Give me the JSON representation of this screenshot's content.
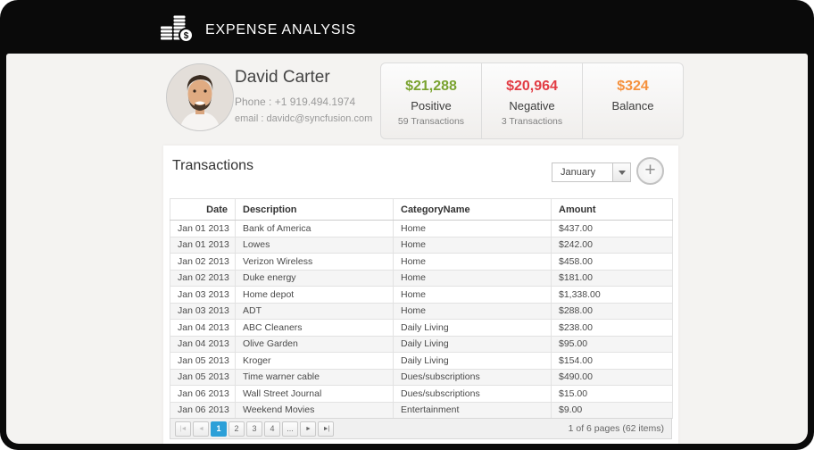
{
  "header": {
    "title": "EXPENSE ANALYSIS"
  },
  "profile": {
    "name": "David Carter",
    "phone": "Phone : +1 919.494.1974",
    "email": "email : davidc@syncfusion.com"
  },
  "summary": {
    "cards": [
      {
        "amount": "$21,288",
        "label": "Positive",
        "sub": "59 Transactions",
        "color": "#7aa330"
      },
      {
        "amount": "$20,964",
        "label": "Negative",
        "sub": "3 Transactions",
        "color": "#e23c44"
      },
      {
        "amount": "$324",
        "label": "Balance",
        "sub": "",
        "color": "#f5913d"
      }
    ]
  },
  "transactions": {
    "title": "Transactions",
    "month_filter": {
      "value": "January"
    },
    "add_button_label": "+",
    "table": {
      "columns": [
        "Date",
        "Description",
        "CategoryName",
        "Amount"
      ],
      "rows": [
        {
          "date": "Jan 01 2013",
          "description": "Bank of America",
          "category": "Home",
          "amount": "$437.00"
        },
        {
          "date": "Jan 01 2013",
          "description": "Lowes",
          "category": "Home",
          "amount": "$242.00"
        },
        {
          "date": "Jan 02 2013",
          "description": "Verizon Wireless",
          "category": "Home",
          "amount": "$458.00"
        },
        {
          "date": "Jan 02 2013",
          "description": "Duke energy",
          "category": "Home",
          "amount": "$181.00"
        },
        {
          "date": "Jan 03 2013",
          "description": "Home depot",
          "category": "Home",
          "amount": "$1,338.00"
        },
        {
          "date": "Jan 03 2013",
          "description": "ADT",
          "category": "Home",
          "amount": "$288.00"
        },
        {
          "date": "Jan 04 2013",
          "description": "ABC Cleaners",
          "category": "Daily Living",
          "amount": "$238.00"
        },
        {
          "date": "Jan 04 2013",
          "description": "Olive Garden",
          "category": "Daily Living",
          "amount": "$95.00"
        },
        {
          "date": "Jan 05 2013",
          "description": "Kroger",
          "category": "Daily Living",
          "amount": "$154.00"
        },
        {
          "date": "Jan 05 2013",
          "description": "Time warner cable",
          "category": "Dues/subscriptions",
          "amount": "$490.00"
        },
        {
          "date": "Jan 06 2013",
          "description": "Wall Street Journal",
          "category": "Dues/subscriptions",
          "amount": "$15.00"
        },
        {
          "date": "Jan 06 2013",
          "description": "Weekend Movies",
          "category": "Entertainment",
          "amount": "$9.00"
        }
      ]
    },
    "pager": {
      "first_icon": "|◄",
      "prev_icon": "◄",
      "pages": [
        "1",
        "2",
        "3",
        "4"
      ],
      "active_page": "1",
      "ellipsis": "...",
      "next_icon": "►",
      "last_icon": "►|",
      "info": "1 of 6 pages (62 items)",
      "active_color": "#2da0d8"
    }
  }
}
